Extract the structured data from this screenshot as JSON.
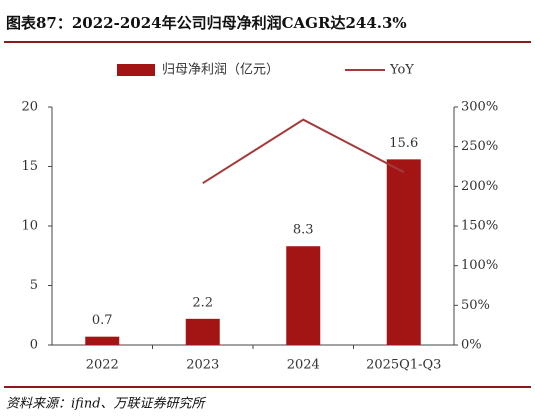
{
  "chart_data": {
    "type": "bar-line",
    "title": "图表87：2022-2024年公司归母净利润CAGR达244.3%",
    "source": "资料来源：ifind、万联证券研究所",
    "categories": [
      "2022",
      "2023",
      "2024",
      "2025Q1-Q3"
    ],
    "series": [
      {
        "name": "归母净利润（亿元）",
        "color": "#a31515",
        "type": "bar",
        "values": [
          0.7,
          2.2,
          8.3,
          15.6
        ]
      },
      {
        "name": "YoY",
        "color": "#a33a3a",
        "type": "line",
        "axis": "y2",
        "values": [
          null,
          204,
          284,
          218
        ]
      }
    ],
    "ylim": [
      0,
      20
    ],
    "yticks": [
      0,
      5,
      10,
      15,
      20
    ],
    "y2lim": [
      0,
      300
    ],
    "y2ticks": [
      {
        "value": 0,
        "label": "0%"
      },
      {
        "value": 50,
        "label": "50%"
      },
      {
        "value": 100,
        "label": "100%"
      },
      {
        "value": 150,
        "label": "150%"
      },
      {
        "value": 200,
        "label": "200%"
      },
      {
        "value": 250,
        "label": "250%"
      },
      {
        "value": 300,
        "label": "300%"
      }
    ]
  }
}
